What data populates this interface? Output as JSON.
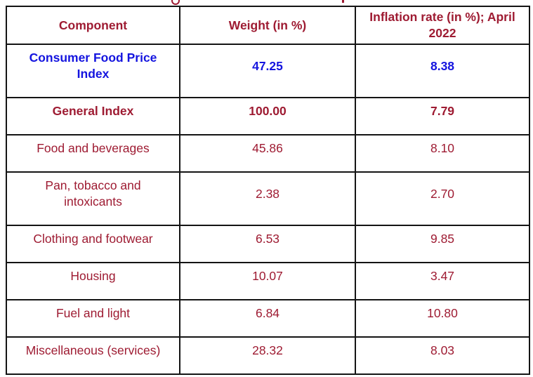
{
  "colors": {
    "maroon_text": "#9E1B32",
    "blue_text": "#1414DF",
    "border": "#141414",
    "background": "#FFFFFF"
  },
  "table": {
    "columns": {
      "component": "Component",
      "weight": "Weight (in %)",
      "inflation": "Inflation rate (in %); April 2022"
    },
    "rows": [
      {
        "component": "Consumer Food Price Index",
        "weight": "47.25",
        "inflation": "8.38",
        "emphasis": "blue-bold"
      },
      {
        "component": "General Index",
        "weight": "100.00",
        "inflation": "7.79",
        "emphasis": "maroon-bold"
      },
      {
        "component": "Food and beverages",
        "weight": "45.86",
        "inflation": "8.10",
        "emphasis": "normal"
      },
      {
        "component": "Pan, tobacco and intoxicants",
        "weight": "2.38",
        "inflation": "2.70",
        "emphasis": "normal"
      },
      {
        "component": "Clothing and footwear",
        "weight": "6.53",
        "inflation": "9.85",
        "emphasis": "normal"
      },
      {
        "component": "Housing",
        "weight": "10.07",
        "inflation": "3.47",
        "emphasis": "normal"
      },
      {
        "component": "Fuel and light",
        "weight": "6.84",
        "inflation": "10.80",
        "emphasis": "normal"
      },
      {
        "component": "Miscellaneous (services)",
        "weight": "28.32",
        "inflation": "8.03",
        "emphasis": "normal"
      }
    ]
  },
  "chart_data": {
    "type": "table",
    "title": "",
    "categories": [
      "Consumer Food Price Index",
      "General Index",
      "Food and beverages",
      "Pan, tobacco and intoxicants",
      "Clothing and footwear",
      "Housing",
      "Fuel and light",
      "Miscellaneous (services)"
    ],
    "series": [
      {
        "name": "Weight (in %)",
        "values": [
          47.25,
          100.0,
          45.86,
          2.38,
          6.53,
          10.07,
          6.84,
          28.32
        ]
      },
      {
        "name": "Inflation rate (in %); April 2022",
        "values": [
          8.38,
          7.79,
          8.1,
          2.7,
          9.85,
          3.47,
          10.8,
          8.03
        ]
      }
    ]
  }
}
